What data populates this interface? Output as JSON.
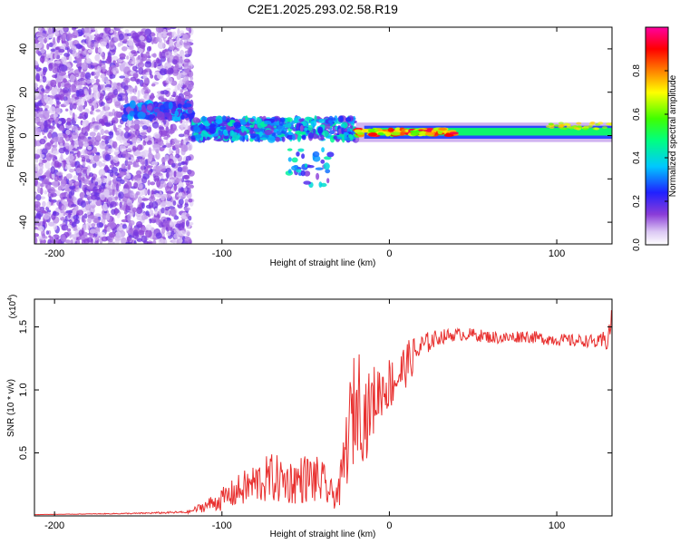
{
  "title": "C2E1.2025.293.02.58.R19",
  "chart_data": [
    {
      "type": "heatmap",
      "xlabel": "Height of straight line (km)",
      "ylabel": "Frequency (Hz)",
      "xlim": [
        -212,
        133
      ],
      "ylim": [
        -50,
        50
      ],
      "xticks": [
        -200,
        -100,
        0,
        100
      ],
      "yticks": [
        -40,
        -20,
        0,
        20,
        40
      ],
      "colorbar": {
        "label": "Normalized spectral amplitude",
        "range": [
          0,
          1
        ],
        "ticks": [
          "0.0",
          "0.2",
          "0.4",
          "0.6",
          "0.8"
        ]
      },
      "regions": [
        {
          "name": "broadband noise",
          "x": [
            -212,
            -118
          ],
          "freq": [
            -50,
            50
          ],
          "amplitude": 0.1
        },
        {
          "name": "scattered signal",
          "x": [
            -158,
            -118
          ],
          "freq": [
            8,
            15
          ],
          "amplitude": 0.35
        },
        {
          "name": "signal band",
          "x": [
            -118,
            -20
          ],
          "freq": [
            -2,
            8
          ],
          "amplitude": 0.35
        },
        {
          "name": "strong carrier",
          "x": [
            -20,
            40
          ],
          "freq": [
            0,
            3
          ],
          "amplitude": 0.9
        },
        {
          "name": "carrier",
          "x": [
            40,
            133
          ],
          "freq": [
            0,
            4
          ],
          "amplitude": 0.5
        }
      ]
    },
    {
      "type": "line",
      "xlabel": "Height of straight line (km)",
      "ylabel": "SNR (10 * v/v)",
      "multiplier": "(x10",
      "multiplier_exp": "4",
      "xlim": [
        -212,
        133
      ],
      "ylim": [
        0,
        1.72
      ],
      "xticks": [
        -200,
        -100,
        0,
        100
      ],
      "yticks": [
        "0.5",
        "1.0",
        "1.5"
      ],
      "series": [
        {
          "name": "SNR",
          "color": "#e8302f",
          "x": [
            -212,
            -150,
            -120,
            -110,
            -100,
            -90,
            -80,
            -70,
            -60,
            -55,
            -50,
            -45,
            -40,
            -35,
            -30,
            -25,
            -22,
            -18,
            -15,
            -12,
            -10,
            -8,
            -5,
            0,
            5,
            10,
            15,
            20,
            25,
            30,
            40,
            50,
            60,
            70,
            80,
            90,
            100,
            110,
            120,
            125,
            130,
            133
          ],
          "values": [
            0.01,
            0.02,
            0.03,
            0.08,
            0.13,
            0.2,
            0.26,
            0.3,
            0.27,
            0.28,
            0.3,
            0.29,
            0.26,
            0.17,
            0.18,
            0.6,
            0.8,
            0.96,
            0.78,
            0.84,
            0.9,
            0.95,
            1.0,
            1.05,
            1.1,
            1.2,
            1.28,
            1.35,
            1.39,
            1.42,
            1.44,
            1.44,
            1.42,
            1.41,
            1.43,
            1.41,
            1.4,
            1.39,
            1.39,
            1.37,
            1.4,
            1.55
          ],
          "noise": [
            0,
            0.005,
            0.01,
            0.05,
            0.09,
            0.13,
            0.17,
            0.2,
            0.18,
            0.19,
            0.2,
            0.2,
            0.18,
            0.12,
            0.12,
            0.35,
            0.45,
            0.4,
            0.4,
            0.3,
            0.28,
            0.28,
            0.22,
            0.22,
            0.2,
            0.18,
            0.15,
            0.1,
            0.08,
            0.06,
            0.05,
            0.05,
            0.05,
            0.05,
            0.05,
            0.05,
            0.05,
            0.05,
            0.05,
            0.06,
            0.1,
            0.1
          ]
        }
      ]
    }
  ]
}
